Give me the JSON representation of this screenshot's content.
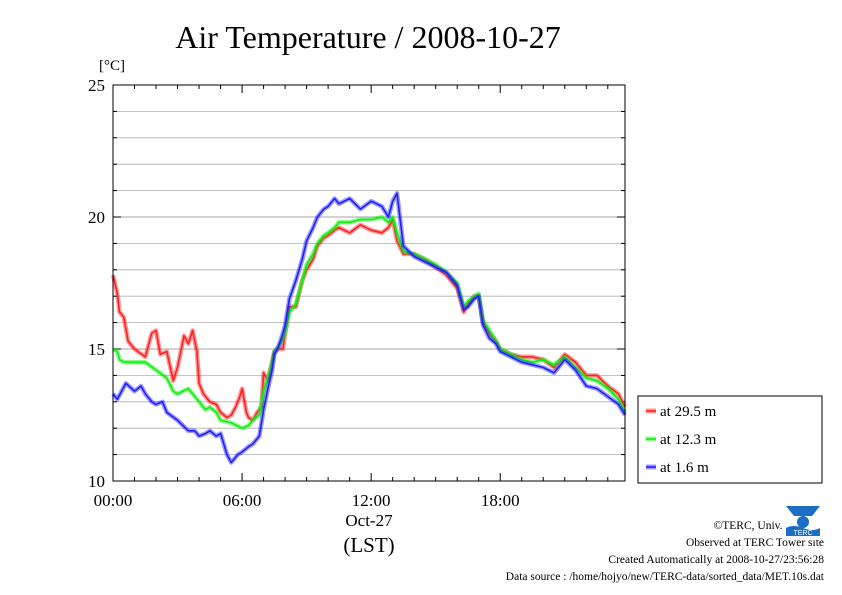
{
  "chart_data": {
    "type": "line",
    "title": "Air Temperature / 2008-10-27",
    "unit_label": "[°C]",
    "xlabel": "Oct-27",
    "xlabel_sub": "(LST)",
    "x_ticks": [
      "00:00",
      "06:00",
      "12:00",
      "18:00"
    ],
    "y_ticks": [
      "10",
      "15",
      "20",
      "25"
    ],
    "xlim": [
      0,
      23.8
    ],
    "ylim": [
      10,
      25
    ],
    "grid": true,
    "legend_position": "right",
    "x_unit": "hours",
    "series": [
      {
        "name": "at 29.5 m",
        "color": "#ff2020",
        "x": [
          0,
          0.2,
          0.3,
          0.5,
          0.7,
          1.0,
          1.5,
          1.8,
          2.0,
          2.2,
          2.5,
          2.8,
          3.0,
          3.3,
          3.5,
          3.7,
          3.9,
          4.0,
          4.2,
          4.5,
          4.8,
          5.0,
          5.3,
          5.5,
          5.7,
          5.9,
          6.0,
          6.2,
          6.3,
          6.5,
          6.7,
          6.9,
          7.0,
          7.2,
          7.4,
          7.5,
          7.7,
          7.9,
          8.0,
          8.2,
          8.5,
          8.8,
          9.0,
          9.3,
          9.5,
          9.8,
          10.0,
          10.3,
          10.5,
          11.0,
          11.5,
          12.0,
          12.5,
          12.8,
          13.0,
          13.2,
          13.5,
          14.0,
          14.5,
          15.0,
          15.5,
          16.0,
          16.3,
          16.5,
          16.8,
          17.0,
          17.2,
          17.5,
          17.8,
          18.0,
          18.5,
          19.0,
          19.5,
          20.0,
          20.5,
          21.0,
          21.5,
          22.0,
          22.5,
          23.0,
          23.5,
          23.8
        ],
        "y": [
          17.8,
          17.1,
          16.4,
          16.2,
          15.3,
          15.0,
          14.7,
          15.6,
          15.7,
          14.8,
          14.9,
          13.8,
          14.3,
          15.5,
          15.2,
          15.7,
          14.9,
          13.7,
          13.3,
          13.0,
          12.9,
          12.6,
          12.4,
          12.5,
          12.8,
          13.2,
          13.5,
          12.6,
          12.4,
          12.3,
          12.6,
          12.8,
          14.1,
          13.8,
          14.5,
          14.9,
          15.0,
          15.0,
          15.6,
          16.6,
          16.6,
          17.6,
          18.0,
          18.4,
          18.9,
          19.2,
          19.3,
          19.5,
          19.6,
          19.4,
          19.7,
          19.5,
          19.4,
          19.6,
          19.9,
          19.1,
          18.6,
          18.6,
          18.4,
          18.1,
          17.8,
          17.3,
          16.4,
          16.7,
          17.0,
          17.0,
          16.0,
          15.6,
          15.3,
          15.0,
          14.8,
          14.7,
          14.7,
          14.6,
          14.3,
          14.8,
          14.5,
          14.0,
          14.0,
          13.6,
          13.3,
          12.8
        ]
      },
      {
        "name": "at 12.3 m",
        "color": "#10ee10",
        "x": [
          0,
          0.2,
          0.3,
          0.5,
          1.0,
          1.5,
          2.0,
          2.5,
          2.8,
          3.0,
          3.5,
          4.0,
          4.3,
          4.5,
          4.8,
          5.0,
          5.5,
          6.0,
          6.3,
          6.5,
          6.8,
          7.0,
          7.2,
          7.4,
          7.5,
          7.7,
          7.9,
          8.0,
          8.2,
          8.5,
          8.8,
          9.0,
          9.3,
          9.5,
          9.8,
          10.0,
          10.3,
          10.5,
          11.0,
          11.5,
          12.0,
          12.5,
          12.8,
          13.0,
          13.2,
          13.5,
          14.0,
          14.5,
          15.0,
          15.5,
          16.0,
          16.3,
          16.5,
          16.8,
          17.0,
          17.2,
          17.5,
          17.8,
          18.0,
          18.5,
          19.0,
          19.5,
          20.0,
          20.5,
          21.0,
          21.5,
          22.0,
          22.5,
          23.0,
          23.5,
          23.8
        ],
        "y": [
          15.0,
          14.9,
          14.6,
          14.5,
          14.5,
          14.5,
          14.2,
          13.9,
          13.4,
          13.3,
          13.5,
          13.0,
          12.7,
          12.8,
          12.6,
          12.3,
          12.2,
          12.0,
          12.1,
          12.3,
          12.5,
          13.4,
          13.9,
          14.5,
          14.9,
          15.1,
          15.4,
          15.6,
          16.4,
          16.7,
          17.6,
          18.2,
          18.6,
          19.0,
          19.3,
          19.4,
          19.6,
          19.8,
          19.8,
          19.9,
          19.9,
          20.0,
          19.8,
          20.0,
          19.4,
          18.7,
          18.6,
          18.4,
          18.2,
          17.9,
          17.5,
          16.6,
          16.8,
          17.0,
          17.1,
          16.1,
          15.7,
          15.3,
          15.0,
          14.8,
          14.6,
          14.5,
          14.6,
          14.4,
          14.7,
          14.3,
          13.9,
          13.8,
          13.5,
          13.1,
          12.6
        ]
      },
      {
        "name": "at 1.6 m",
        "color": "#2020ff",
        "x": [
          0,
          0.2,
          0.4,
          0.6,
          1.0,
          1.3,
          1.5,
          1.8,
          2.0,
          2.3,
          2.5,
          3.0,
          3.5,
          3.8,
          4.0,
          4.3,
          4.5,
          4.8,
          5.0,
          5.3,
          5.5,
          5.8,
          6.0,
          6.3,
          6.5,
          6.8,
          7.0,
          7.2,
          7.4,
          7.5,
          7.7,
          7.9,
          8.0,
          8.2,
          8.5,
          8.8,
          9.0,
          9.3,
          9.5,
          9.8,
          10.0,
          10.3,
          10.5,
          11.0,
          11.5,
          12.0,
          12.5,
          12.8,
          13.0,
          13.2,
          13.5,
          14.0,
          14.5,
          15.0,
          15.5,
          16.0,
          16.3,
          16.5,
          16.8,
          17.0,
          17.2,
          17.5,
          17.8,
          18.0,
          18.5,
          19.0,
          19.5,
          20.0,
          20.5,
          21.0,
          21.5,
          22.0,
          22.5,
          23.0,
          23.5,
          23.8
        ],
        "y": [
          13.3,
          13.1,
          13.4,
          13.7,
          13.4,
          13.6,
          13.3,
          13.0,
          12.9,
          13.0,
          12.6,
          12.3,
          11.9,
          11.9,
          11.7,
          11.8,
          11.9,
          11.7,
          11.8,
          11.0,
          10.7,
          11.0,
          11.1,
          11.3,
          11.4,
          11.7,
          12.7,
          13.5,
          14.2,
          14.8,
          15.1,
          15.6,
          15.9,
          16.9,
          17.6,
          18.4,
          19.1,
          19.6,
          20.0,
          20.3,
          20.4,
          20.7,
          20.5,
          20.7,
          20.3,
          20.6,
          20.4,
          20.0,
          20.6,
          20.9,
          18.9,
          18.5,
          18.3,
          18.1,
          17.9,
          17.4,
          16.5,
          16.6,
          16.9,
          17.0,
          15.9,
          15.4,
          15.2,
          14.9,
          14.7,
          14.5,
          14.4,
          14.3,
          14.1,
          14.6,
          14.2,
          13.6,
          13.5,
          13.2,
          12.9,
          12.5
        ]
      }
    ]
  },
  "credits": {
    "line1": "©TERC, Univ. Tsukuba",
    "line2": "Observed at TERC Tower site",
    "line3": "Created Automatically at 2008-10-27/23:56:28",
    "line4": "Data source : /home/hojyo/new/TERC-data/sorted_data/MET.10s.dat"
  },
  "logo_icon": "terc-logo-icon",
  "logo_text": "TERC"
}
